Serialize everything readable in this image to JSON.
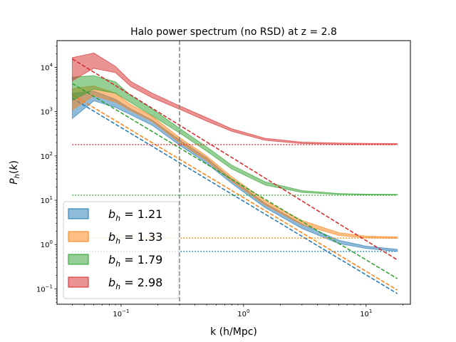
{
  "chart_data": {
    "type": "line",
    "title": "Halo power spectrum (no RSD) at z = 2.8",
    "xlabel": "k (h/Mpc)",
    "ylabel": "P_h(k)",
    "xscale": "log",
    "yscale": "log",
    "xlim": [
      0.03,
      23.0
    ],
    "ylim": [
      0.045,
      40000
    ],
    "x_ticks": [
      {
        "value": 0.1,
        "base": "10",
        "exp": "−1"
      },
      {
        "value": 1.0,
        "base": "10",
        "exp": "0"
      },
      {
        "value": 10.0,
        "base": "10",
        "exp": "1"
      }
    ],
    "y_ticks": [
      {
        "value": 0.1,
        "base": "10",
        "exp": "−1"
      },
      {
        "value": 1.0,
        "base": "10",
        "exp": "0"
      },
      {
        "value": 10.0,
        "base": "10",
        "exp": "1"
      },
      {
        "value": 100.0,
        "base": "10",
        "exp": "2"
      },
      {
        "value": 1000.0,
        "base": "10",
        "exp": "3"
      },
      {
        "value": 10000.0,
        "base": "10",
        "exp": "4"
      }
    ],
    "vline": {
      "x": 0.3,
      "style": "dashed",
      "color": "#808080"
    },
    "legend_position": "lower-left",
    "k_values": [
      0.04,
      0.06,
      0.09,
      0.12,
      0.18,
      0.3,
      0.5,
      0.8,
      1.5,
      3,
      6,
      10,
      18
    ],
    "linear_k": [
      0.04,
      18
    ],
    "series": [
      {
        "name": "b_h = 1.21",
        "label_var": "b",
        "label_sub": "h",
        "label_rest": " =  1.21",
        "color": "#1f77b4",
        "band_upper": [
          2600,
          2900,
          1900,
          1150,
          640,
          230,
          90,
          30,
          8.5,
          2.9,
          1.25,
          0.92,
          0.78
        ],
        "band_lower": [
          700,
          1750,
          1250,
          850,
          490,
          175,
          68,
          24,
          6.8,
          2.3,
          1.05,
          0.82,
          0.7
        ],
        "linear": [
          2000,
          0.078
        ],
        "shot_noise": 0.7
      },
      {
        "name": "b_h = 1.33",
        "label_var": "b",
        "label_sub": "h",
        "label_rest": " =  1.33",
        "color": "#ff7f0e",
        "band_upper": [
          3300,
          3800,
          2600,
          1450,
          780,
          260,
          100,
          34,
          9.8,
          3.5,
          1.85,
          1.55,
          1.48
        ],
        "band_lower": [
          1100,
          2300,
          1650,
          1050,
          600,
          200,
          78,
          27,
          7.8,
          2.8,
          1.6,
          1.42,
          1.38
        ],
        "linear": [
          2400,
          0.094
        ],
        "shot_noise": 1.4
      },
      {
        "name": "b_h = 1.79",
        "label_var": "b",
        "label_sub": "h",
        "label_rest": " =  1.79",
        "color": "#2ca02c",
        "band_upper": [
          6000,
          6500,
          4700,
          2300,
          1150,
          420,
          160,
          62,
          26,
          16.5,
          14.2,
          13.7,
          13.6
        ],
        "band_lower": [
          1800,
          3200,
          2600,
          1600,
          800,
          330,
          128,
          51,
          22,
          15,
          13.5,
          13.2,
          13.1
        ],
        "linear": [
          4300,
          0.17
        ],
        "shot_noise": 13
      },
      {
        "name": "b_h = 2.98",
        "label_var": "b",
        "label_sub": "h",
        "label_rest": " =  2.98",
        "color": "#d62728",
        "band_upper": [
          16500,
          21000,
          10500,
          4800,
          2600,
          1350,
          730,
          410,
          250,
          205,
          195,
          192,
          190
        ],
        "band_lower": [
          5000,
          9500,
          7600,
          3700,
          2050,
          1130,
          610,
          360,
          225,
          190,
          183,
          181,
          180
        ],
        "linear": [
          15500,
          0.45
        ],
        "shot_noise": 180
      }
    ]
  }
}
